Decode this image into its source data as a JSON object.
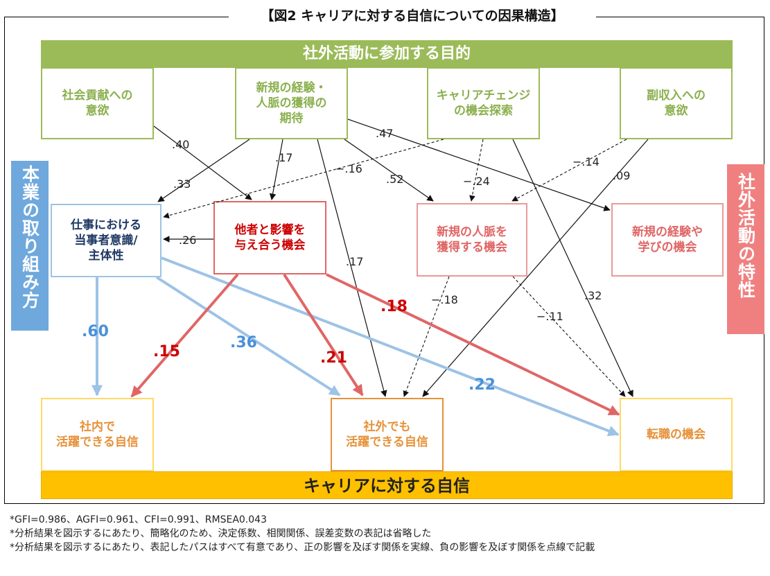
{
  "title": "【図2 キャリアに対する自信についての因果構造】",
  "top_banner": "社外活動に参加する目的",
  "bottom_banner": "キャリアに対する自信",
  "left_side_label": "本業の取り組み方",
  "right_side_label": "社外活動の特性",
  "purposes": {
    "contribution": "社会貢献への\n意欲",
    "new_experience": "新規の経験・\n人脈の獲得の\n期待",
    "career_change": "キャリアチェンジ\nの機会探索",
    "side_income": "副収入への\n意欲"
  },
  "mediators": {
    "ownership": "仕事における\n当事者意識/\n主体性",
    "influence": "他者と影響を\n与え合う機会",
    "network": "新規の人脈を\n獲得する機会",
    "learning": "新規の経験や\n学びの機会"
  },
  "outcomes": {
    "inside": "社内で\n活躍できる自信",
    "outside": "社外でも\n活躍できる自信",
    "job_change": "転職の機会"
  },
  "coefficients": {
    "c40": ".40",
    "c33": ".33",
    "c17a": ".17",
    "cm16": "−.16",
    "c47": ".47",
    "c52": ".52",
    "cm24": "−.24",
    "cm14": "−.14",
    "c09": ".09",
    "c26": ".26",
    "c17b": ".17",
    "cm18": "−.18",
    "cm11": "−.11",
    "c32": ".32",
    "c60": ".60",
    "c15": ".15",
    "c36": ".36",
    "c21": ".21",
    "c18": ".18",
    "c22": ".22"
  },
  "notes": [
    "*GFI=0.986、AGFI=0.961、CFI=0.991、RMSEA0.043",
    "*分析結果を図示するにあたり、簡略化のため、決定係数、相関関係、誤差変数の表記は省略した",
    "*分析結果を図示するにあたり、表記したパスはすべて有意であり、正の影響を及ぼす関係を実線、負の影響を及ぼす関係を点線で記載"
  ],
  "colors": {
    "green": "#9bbb59",
    "blue": "#9dc3e6",
    "red": "#e06666",
    "yellow": "#ffc000",
    "orange": "#e69138",
    "navy": "#1f3864"
  }
}
